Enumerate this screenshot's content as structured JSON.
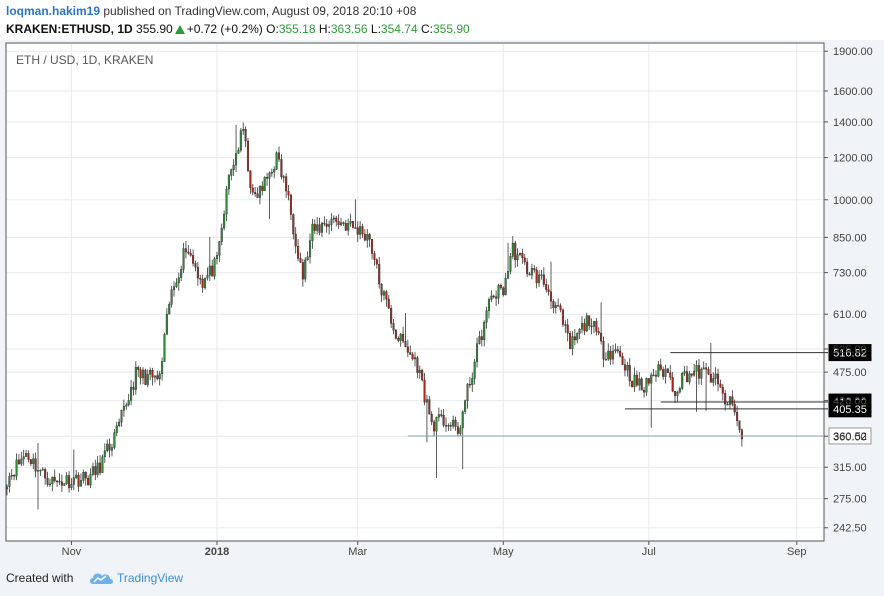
{
  "header": {
    "user": "loqman.hakim19",
    "published_text": "published on TradingView.com, August 09, 2018 20:10 +08",
    "symbol": "KRAKEN:ETHUSD, 1D",
    "last": "355.90",
    "change": "+0.72 (+0.2%)",
    "o_label": "O:",
    "o_value": "355.18",
    "h_label": "H:",
    "h_value": "363.56",
    "l_label": "L:",
    "l_value": "354.74",
    "c_label": "C:",
    "c_value": "355.90"
  },
  "footer": {
    "created_with": "Created with",
    "brand": "TradingView",
    "logo_icon": "tradingview-cloud-icon"
  },
  "colors": {
    "up": "#2e8b3a",
    "down": "#a52a1e",
    "grid": "#e8eaee",
    "axis": "#555555",
    "user": "#2a76c6",
    "green_text": "#2a9d35",
    "brand": "#3d8ed8"
  },
  "chart_data": {
    "type": "candlestick",
    "title": "ETH / USD, 1D, KRAKEN",
    "scale": "log",
    "ylim": [
      230,
      1960
    ],
    "y_ticks": [
      242.5,
      275,
      315,
      360,
      420,
      475,
      525,
      610,
      730,
      850,
      1000,
      1200,
      1400,
      1600,
      1900
    ],
    "y_tick_labels": [
      "242.50",
      "275.00",
      "315.00",
      "360.00",
      "420.00",
      "475.00",
      "525.00",
      "610.00",
      "730.00",
      "850.00",
      "1000.00",
      "1200.00",
      "1400.00",
      "1600.00",
      "1900.00"
    ],
    "x_start": "2017-10-05",
    "x_end": "2018-09-12",
    "x_ticks": [
      {
        "date": "2017-11-01",
        "label": "Nov"
      },
      {
        "date": "2018-01-01",
        "label": "2018"
      },
      {
        "date": "2018-03-01",
        "label": "Mar"
      },
      {
        "date": "2018-05-01",
        "label": "May"
      },
      {
        "date": "2018-07-01",
        "label": "Jul"
      },
      {
        "date": "2018-09-01",
        "label": "Sep"
      }
    ],
    "grid": true,
    "series": [
      {
        "name": "ETH/USD",
        "anchors": [
          [
            "2017-10-05",
            300
          ],
          [
            "2017-10-13",
            335
          ],
          [
            "2017-10-20",
            305
          ],
          [
            "2017-10-25",
            295
          ],
          [
            "2017-11-03",
            300
          ],
          [
            "2017-11-08",
            300
          ],
          [
            "2017-11-12",
            312
          ],
          [
            "2017-11-20",
            365
          ],
          [
            "2017-11-28",
            470
          ],
          [
            "2017-12-08",
            460
          ],
          [
            "2017-12-12",
            640
          ],
          [
            "2017-12-19",
            820
          ],
          [
            "2017-12-26",
            700
          ],
          [
            "2018-01-01",
            760
          ],
          [
            "2018-01-06",
            1100
          ],
          [
            "2018-01-12",
            1350
          ],
          [
            "2018-01-16",
            1000
          ],
          [
            "2018-01-20",
            1050
          ],
          [
            "2018-01-26",
            1200
          ],
          [
            "2018-01-30",
            1050
          ],
          [
            "2018-02-06",
            720
          ],
          [
            "2018-02-10",
            870
          ],
          [
            "2018-02-18",
            920
          ],
          [
            "2018-02-24",
            900
          ],
          [
            "2018-03-03",
            870
          ],
          [
            "2018-03-06",
            850
          ],
          [
            "2018-03-10",
            700
          ],
          [
            "2018-03-17",
            560
          ],
          [
            "2018-03-26",
            490
          ],
          [
            "2018-04-01",
            380
          ],
          [
            "2018-04-07",
            385
          ],
          [
            "2018-04-12",
            365
          ],
          [
            "2018-04-20",
            520
          ],
          [
            "2018-04-26",
            660
          ],
          [
            "2018-05-01",
            680
          ],
          [
            "2018-05-05",
            810
          ],
          [
            "2018-05-10",
            750
          ],
          [
            "2018-05-18",
            700
          ],
          [
            "2018-05-24",
            620
          ],
          [
            "2018-05-29",
            530
          ],
          [
            "2018-06-06",
            600
          ],
          [
            "2018-06-12",
            520
          ],
          [
            "2018-06-18",
            520
          ],
          [
            "2018-06-24",
            460
          ],
          [
            "2018-06-29",
            440
          ],
          [
            "2018-07-02",
            470
          ],
          [
            "2018-07-08",
            480
          ],
          [
            "2018-07-12",
            440
          ],
          [
            "2018-07-16",
            470
          ],
          [
            "2018-07-22",
            475
          ],
          [
            "2018-07-28",
            465
          ],
          [
            "2018-08-02",
            420
          ],
          [
            "2018-08-05",
            410
          ],
          [
            "2018-08-07",
            385
          ],
          [
            "2018-08-09",
            356
          ]
        ]
      }
    ],
    "horizontal_lines": [
      {
        "from": "2018-07-10",
        "value": 516.82,
        "label": "516.82"
      },
      {
        "from": "2018-07-06",
        "value": 417.38,
        "label": "417.38"
      },
      {
        "from": "2018-06-21",
        "value": 405.35,
        "label": "405.35"
      },
      {
        "from": "2018-03-22",
        "value": 360.52,
        "label": "360.52"
      }
    ],
    "current_price": 355.9
  }
}
